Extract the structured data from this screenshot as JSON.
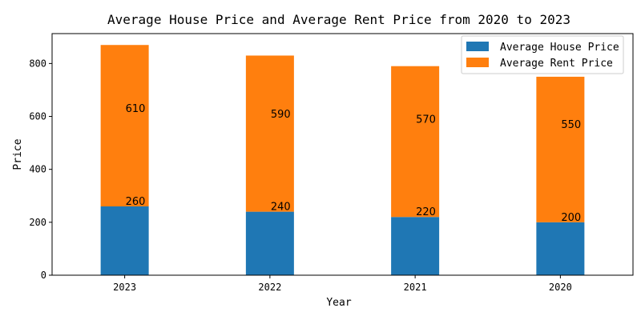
{
  "chart_data": {
    "type": "bar",
    "stacked": true,
    "title": "Average House Price and Average Rent Price from 2020 to 2023",
    "xlabel": "Year",
    "ylabel": "Price",
    "categories": [
      "2023",
      "2022",
      "2021",
      "2020"
    ],
    "series": [
      {
        "name": "Average House Price",
        "values": [
          260,
          240,
          220,
          200
        ],
        "color": "#1f77b4"
      },
      {
        "name": "Average Rent Price",
        "values": [
          610,
          590,
          570,
          550
        ],
        "color": "#ff7f0e"
      }
    ],
    "ylim": [
      0,
      913
    ],
    "yticks": [
      0,
      200,
      400,
      600,
      800
    ],
    "grid": false,
    "legend_position": "top-right"
  }
}
